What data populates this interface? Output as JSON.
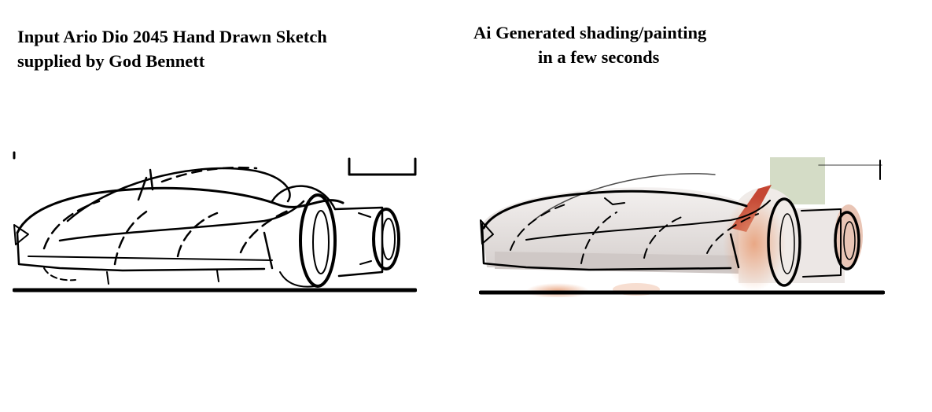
{
  "left_caption": {
    "line1": "Input Ario Dio 2045 Hand Drawn Sketch",
    "line2": "supplied by God Bennett"
  },
  "right_caption": {
    "line1": "Ai Generated shading/painting",
    "line2": "in a few seconds"
  },
  "colors": {
    "ink": "#000000",
    "paint_red": "#c0341f",
    "paint_orange": "#e8a07a",
    "paint_green": "#b8c4a0",
    "paint_gray": "#d8d4d2"
  }
}
